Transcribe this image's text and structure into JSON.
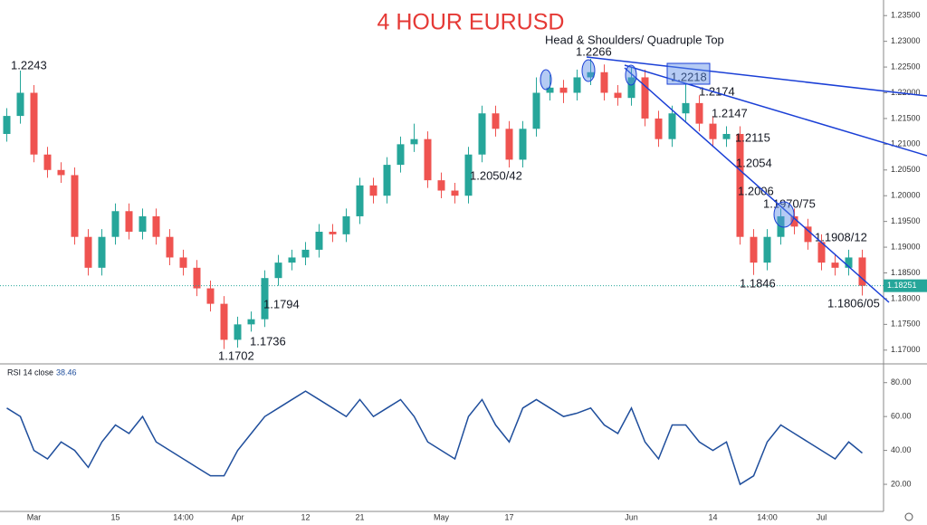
{
  "chart_data": [
    {
      "type": "candlestick",
      "title": "4 HOUR EURUSD",
      "subtitle": "Head & Shoulders/ Quadruple Top",
      "categories": [
        null,
        null,
        "Mar",
        null,
        null,
        null,
        null,
        null,
        "15",
        null,
        null,
        null,
        null,
        "14:00",
        null,
        null,
        null,
        "Apr",
        null,
        null,
        null,
        null,
        "12",
        null,
        null,
        null,
        "21",
        null,
        null,
        null,
        null,
        null,
        "May",
        null,
        null,
        null,
        null,
        "17",
        null,
        null,
        null,
        null,
        null,
        null,
        null,
        null,
        "Jun",
        null,
        null,
        null,
        null,
        null,
        "14",
        null,
        null,
        null,
        "14:00",
        null,
        null,
        null,
        "Jul",
        null,
        null,
        null
      ],
      "open": [
        1.212,
        1.2155,
        1.22,
        1.208,
        1.205,
        1.204,
        1.192,
        1.186,
        1.192,
        1.197,
        1.193,
        1.196,
        1.192,
        1.188,
        1.186,
        1.182,
        1.179,
        1.172,
        1.175,
        1.176,
        1.184,
        1.187,
        1.188,
        1.1895,
        1.193,
        1.1925,
        1.196,
        1.202,
        1.2,
        1.206,
        1.21,
        1.211,
        1.203,
        1.201,
        1.2,
        1.208,
        1.216,
        1.213,
        1.207,
        1.213,
        1.22,
        1.221,
        1.22,
        1.223,
        1.224,
        1.22,
        1.219,
        1.223,
        1.215,
        1.211,
        1.216,
        1.218,
        1.214,
        1.211,
        1.212,
        1.192,
        1.187,
        1.192,
        1.196,
        1.194,
        1.191,
        1.187,
        1.186,
        1.188
      ],
      "high": [
        1.217,
        1.2243,
        1.2215,
        1.2095,
        1.2065,
        1.2055,
        1.1935,
        1.1935,
        1.1985,
        1.1985,
        1.1975,
        1.1975,
        1.1935,
        1.1895,
        1.1875,
        1.1835,
        1.1805,
        1.1765,
        1.1775,
        1.1855,
        1.1885,
        1.1895,
        1.191,
        1.1945,
        1.1945,
        1.1975,
        1.2035,
        1.2035,
        1.2075,
        1.2115,
        1.214,
        1.2125,
        1.2045,
        1.2025,
        1.2095,
        1.2175,
        1.2175,
        1.2145,
        1.2145,
        1.223,
        1.2235,
        1.2225,
        1.2245,
        1.2266,
        1.2255,
        1.2215,
        1.225,
        1.2245,
        1.2165,
        1.2175,
        1.2218,
        1.2195,
        1.2155,
        1.2135,
        1.2135,
        1.1935,
        1.1935,
        1.1975,
        1.1975,
        1.1955,
        1.1925,
        1.1885,
        1.1895,
        1.1895
      ],
      "low": [
        1.2105,
        1.214,
        1.2065,
        1.2035,
        1.2025,
        1.1905,
        1.1845,
        1.1845,
        1.1905,
        1.1915,
        1.1915,
        1.1905,
        1.1865,
        1.1845,
        1.1805,
        1.1775,
        1.1702,
        1.1705,
        1.1736,
        1.1745,
        1.1825,
        1.1855,
        1.1865,
        1.188,
        1.191,
        1.191,
        1.1945,
        1.1985,
        1.1985,
        1.2045,
        1.2085,
        1.2015,
        1.1995,
        1.1985,
        1.1985,
        1.2065,
        1.2115,
        1.2055,
        1.2055,
        1.2115,
        1.2185,
        1.218,
        1.2185,
        1.2215,
        1.2185,
        1.2175,
        1.2175,
        1.2135,
        1.2095,
        1.2095,
        1.2145,
        1.2125,
        1.2095,
        1.2095,
        1.1905,
        1.1846,
        1.1855,
        1.1905,
        1.1925,
        1.1895,
        1.1855,
        1.1845,
        1.1845,
        1.1806
      ],
      "close": [
        1.2155,
        1.22,
        1.208,
        1.205,
        1.204,
        1.192,
        1.186,
        1.192,
        1.197,
        1.193,
        1.196,
        1.192,
        1.188,
        1.186,
        1.182,
        1.179,
        1.172,
        1.175,
        1.176,
        1.184,
        1.187,
        1.188,
        1.1895,
        1.193,
        1.1925,
        1.196,
        1.202,
        1.2,
        1.206,
        1.21,
        1.211,
        1.203,
        1.201,
        1.2,
        1.208,
        1.216,
        1.213,
        1.207,
        1.213,
        1.22,
        1.221,
        1.22,
        1.223,
        1.224,
        1.22,
        1.219,
        1.223,
        1.215,
        1.211,
        1.216,
        1.218,
        1.214,
        1.211,
        1.212,
        1.192,
        1.187,
        1.192,
        1.196,
        1.194,
        1.191,
        1.187,
        1.186,
        1.188,
        1.1825
      ],
      "up_color": "#26a69a",
      "down_color": "#ef5350",
      "ylim": [
        1.1675,
        1.2375
      ],
      "yticks": [
        {
          "value": 1.17,
          "label": "1.17000"
        },
        {
          "value": 1.175,
          "label": "1.17500"
        },
        {
          "value": 1.18,
          "label": "1.18000"
        },
        {
          "value": 1.185,
          "label": "1.18500"
        },
        {
          "value": 1.19,
          "label": "1.19000"
        },
        {
          "value": 1.195,
          "label": "1.19500"
        },
        {
          "value": 1.2,
          "label": "1.20000"
        },
        {
          "value": 1.205,
          "label": "1.20500"
        },
        {
          "value": 1.21,
          "label": "1.21000"
        },
        {
          "value": 1.215,
          "label": "1.21500"
        },
        {
          "value": 1.22,
          "label": "1.22000"
        },
        {
          "value": 1.225,
          "label": "1.22500"
        },
        {
          "value": 1.23,
          "label": "1.23000"
        },
        {
          "value": 1.235,
          "label": "1.23500"
        }
      ],
      "last_price": {
        "value": 1.18251,
        "label": "1.18251"
      },
      "annotations": [
        "1.2243",
        "1.2266",
        "1.2218",
        "1.2174",
        "1.2147",
        "1.2115",
        "1.2054",
        "1.2006",
        "1.1970/75",
        "1.1908/12",
        "1.1846",
        "1.1806/05",
        "1.2050/42",
        "1.1794",
        "1.1736",
        "1.1702"
      ]
    },
    {
      "type": "line",
      "title": "RSI 14 close",
      "color": "#1f4e9c",
      "values": [
        65,
        60,
        40,
        35,
        45,
        40,
        30,
        45,
        55,
        50,
        60,
        45,
        40,
        35,
        30,
        25,
        25,
        40,
        50,
        60,
        65,
        70,
        75,
        70,
        65,
        60,
        70,
        60,
        65,
        70,
        60,
        45,
        40,
        35,
        60,
        70,
        55,
        45,
        65,
        70,
        65,
        60,
        62,
        65,
        55,
        50,
        65,
        45,
        35,
        55,
        55,
        45,
        40,
        45,
        20,
        25,
        45,
        55,
        50,
        45,
        40,
        35,
        45,
        38.46
      ],
      "ylim": [
        4,
        90
      ],
      "yticks": [
        {
          "value": 20,
          "label": "20.00"
        },
        {
          "value": 40,
          "label": "40.00"
        },
        {
          "value": 60,
          "label": "60.00"
        },
        {
          "value": 80,
          "label": "80.00"
        }
      ]
    }
  ]
}
